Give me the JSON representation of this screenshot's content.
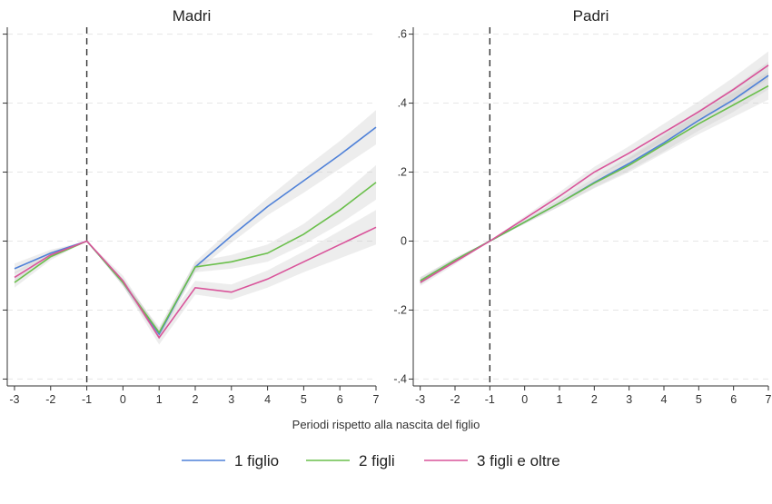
{
  "chart_data": [
    {
      "type": "line",
      "title": "Madri",
      "x": [
        -3,
        -2,
        -1,
        0,
        1,
        2,
        3,
        4,
        5,
        6,
        7
      ],
      "xlim": [
        -3.2,
        7
      ],
      "ylim": [
        -0.42,
        0.62
      ],
      "yticks": [
        -0.4,
        -0.2,
        0,
        0.2,
        0.4,
        0.6
      ],
      "ytick_labels": [
        "",
        "",
        "",
        "",
        "",
        ""
      ],
      "reference_x": -1,
      "grid": true,
      "series": [
        {
          "name": "1 figlio",
          "color": "#4f81d8",
          "values": [
            -0.08,
            -0.035,
            0,
            -0.12,
            -0.27,
            -0.075,
            0.015,
            0.1,
            0.175,
            0.25,
            0.33
          ],
          "ci_lower": [
            -0.095,
            -0.045,
            0,
            -0.13,
            -0.285,
            -0.09,
            -0.005,
            0.075,
            0.14,
            0.21,
            0.28
          ],
          "ci_upper": [
            -0.065,
            -0.025,
            0,
            -0.11,
            -0.255,
            -0.06,
            0.035,
            0.125,
            0.21,
            0.29,
            0.38
          ]
        },
        {
          "name": "2 figli",
          "color": "#6abf4b",
          "values": [
            -0.12,
            -0.045,
            0,
            -0.12,
            -0.265,
            -0.075,
            -0.06,
            -0.035,
            0.02,
            0.09,
            0.17
          ],
          "ci_lower": [
            -0.135,
            -0.055,
            0,
            -0.13,
            -0.28,
            -0.09,
            -0.08,
            -0.06,
            -0.01,
            0.05,
            0.12
          ],
          "ci_upper": [
            -0.105,
            -0.035,
            0,
            -0.11,
            -0.25,
            -0.06,
            -0.04,
            -0.01,
            0.05,
            0.13,
            0.22
          ]
        },
        {
          "name": "3 figli e oltre",
          "color": "#d9539a",
          "values": [
            -0.105,
            -0.04,
            0,
            -0.115,
            -0.28,
            -0.135,
            -0.148,
            -0.11,
            -0.06,
            -0.01,
            0.04
          ],
          "ci_lower": [
            -0.12,
            -0.05,
            0,
            -0.13,
            -0.3,
            -0.155,
            -0.17,
            -0.135,
            -0.09,
            -0.05,
            -0.01
          ],
          "ci_upper": [
            -0.09,
            -0.03,
            0,
            -0.1,
            -0.26,
            -0.115,
            -0.126,
            -0.085,
            -0.03,
            0.03,
            0.09
          ]
        }
      ]
    },
    {
      "type": "line",
      "title": "Padri",
      "x": [
        -3,
        -2,
        -1,
        0,
        1,
        2,
        3,
        4,
        5,
        6,
        7
      ],
      "xlim": [
        -3.2,
        7
      ],
      "ylim": [
        -0.42,
        0.62
      ],
      "yticks": [
        -0.4,
        -0.2,
        0,
        0.2,
        0.4,
        0.6
      ],
      "ytick_labels": [
        "-.4",
        "-.2",
        "0",
        ".2",
        ".4",
        ".6"
      ],
      "reference_x": -1,
      "grid": true,
      "series": [
        {
          "name": "1 figlio",
          "color": "#4f81d8",
          "values": [
            -0.115,
            -0.055,
            0,
            0.055,
            0.11,
            0.17,
            0.225,
            0.285,
            0.35,
            0.41,
            0.48
          ],
          "ci_lower": [
            -0.125,
            -0.062,
            0,
            0.05,
            0.1,
            0.155,
            0.205,
            0.26,
            0.32,
            0.375,
            0.44
          ],
          "ci_upper": [
            -0.105,
            -0.048,
            0,
            0.06,
            0.12,
            0.185,
            0.245,
            0.31,
            0.38,
            0.445,
            0.52
          ]
        },
        {
          "name": "2 figli",
          "color": "#6abf4b",
          "values": [
            -0.115,
            -0.055,
            0,
            0.055,
            0.11,
            0.168,
            0.22,
            0.28,
            0.34,
            0.395,
            0.45
          ],
          "ci_lower": [
            -0.125,
            -0.062,
            0,
            0.05,
            0.1,
            0.153,
            0.2,
            0.255,
            0.31,
            0.36,
            0.41
          ],
          "ci_upper": [
            -0.105,
            -0.048,
            0,
            0.06,
            0.12,
            0.183,
            0.24,
            0.305,
            0.37,
            0.43,
            0.49
          ]
        },
        {
          "name": "3 figli e oltre",
          "color": "#d9539a",
          "values": [
            -0.12,
            -0.06,
            0,
            0.065,
            0.13,
            0.2,
            0.255,
            0.315,
            0.375,
            0.44,
            0.51
          ],
          "ci_lower": [
            -0.13,
            -0.068,
            0,
            0.058,
            0.118,
            0.185,
            0.235,
            0.29,
            0.345,
            0.405,
            0.47
          ],
          "ci_upper": [
            -0.11,
            -0.052,
            0,
            0.072,
            0.142,
            0.215,
            0.275,
            0.34,
            0.405,
            0.475,
            0.55
          ]
        }
      ]
    }
  ],
  "shared": {
    "xlabel": "Periodi rispetto alla nascita del figlio",
    "xtick_labels": [
      "-3",
      "-2",
      "-1",
      "0",
      "1",
      "2",
      "3",
      "4",
      "5",
      "6",
      "7"
    ]
  },
  "legend": {
    "placement": "bottom",
    "items": [
      {
        "label": "1 figlio",
        "color": "#4f81d8"
      },
      {
        "label": "2 figli",
        "color": "#6abf4b"
      },
      {
        "label": "3 figli e oltre",
        "color": "#d9539a"
      }
    ]
  }
}
